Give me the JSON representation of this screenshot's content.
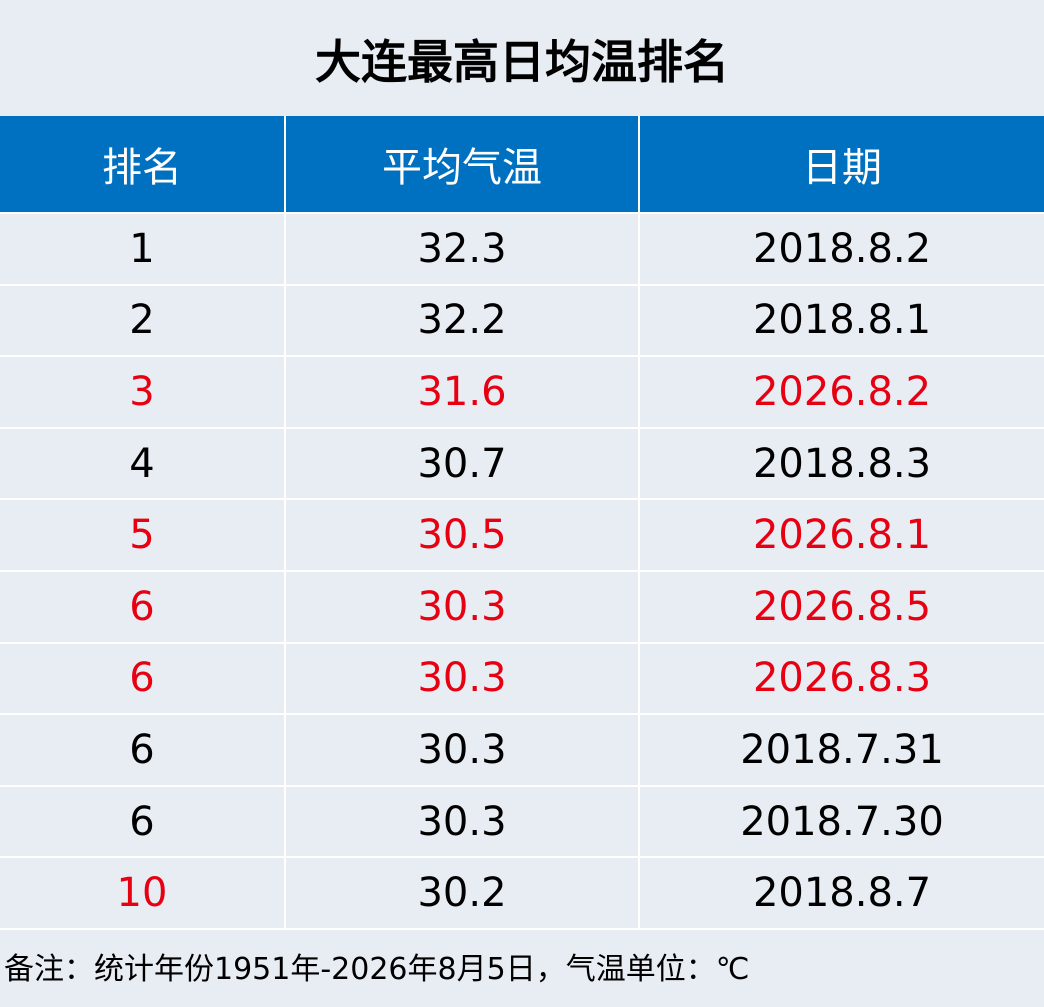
{
  "title": "大连最高日均温排名",
  "table": {
    "header": [
      "排名",
      "平均气温",
      "日期"
    ],
    "rows": [
      {
        "cells": [
          1,
          32.3,
          "2018.8.2"
        ],
        "colors": [
          "#000000",
          "#000000",
          "#000000"
        ]
      },
      {
        "cells": [
          2,
          32.2,
          "2018.8.1"
        ],
        "colors": [
          "#000000",
          "#000000",
          "#000000"
        ]
      },
      {
        "cells": [
          3,
          31.6,
          "2026.8.2"
        ],
        "colors": [
          "#e60012",
          "#e60012",
          "#e60012"
        ]
      },
      {
        "cells": [
          4,
          30.7,
          "2018.8.3"
        ],
        "colors": [
          "#000000",
          "#000000",
          "#000000"
        ]
      },
      {
        "cells": [
          5,
          30.5,
          "2026.8.1"
        ],
        "colors": [
          "#e60012",
          "#e60012",
          "#e60012"
        ]
      },
      {
        "cells": [
          6,
          30.3,
          "2026.8.5"
        ],
        "colors": [
          "#e60012",
          "#e60012",
          "#e60012"
        ]
      },
      {
        "cells": [
          6,
          30.3,
          "2026.8.3"
        ],
        "colors": [
          "#e60012",
          "#e60012",
          "#e60012"
        ]
      },
      {
        "cells": [
          6,
          30.3,
          "2018.7.31"
        ],
        "colors": [
          "#000000",
          "#000000",
          "#000000"
        ]
      },
      {
        "cells": [
          6,
          30.3,
          "2018.7.30"
        ],
        "colors": [
          "#000000",
          "#000000",
          "#000000"
        ]
      },
      {
        "cells": [
          10,
          30.2,
          "2018.8.7"
        ],
        "colors": [
          "#e60012",
          "#000000",
          "#000000"
        ]
      }
    ]
  },
  "note": "备注：统计年份1951年-2026年8月5日，气温单位：℃"
}
